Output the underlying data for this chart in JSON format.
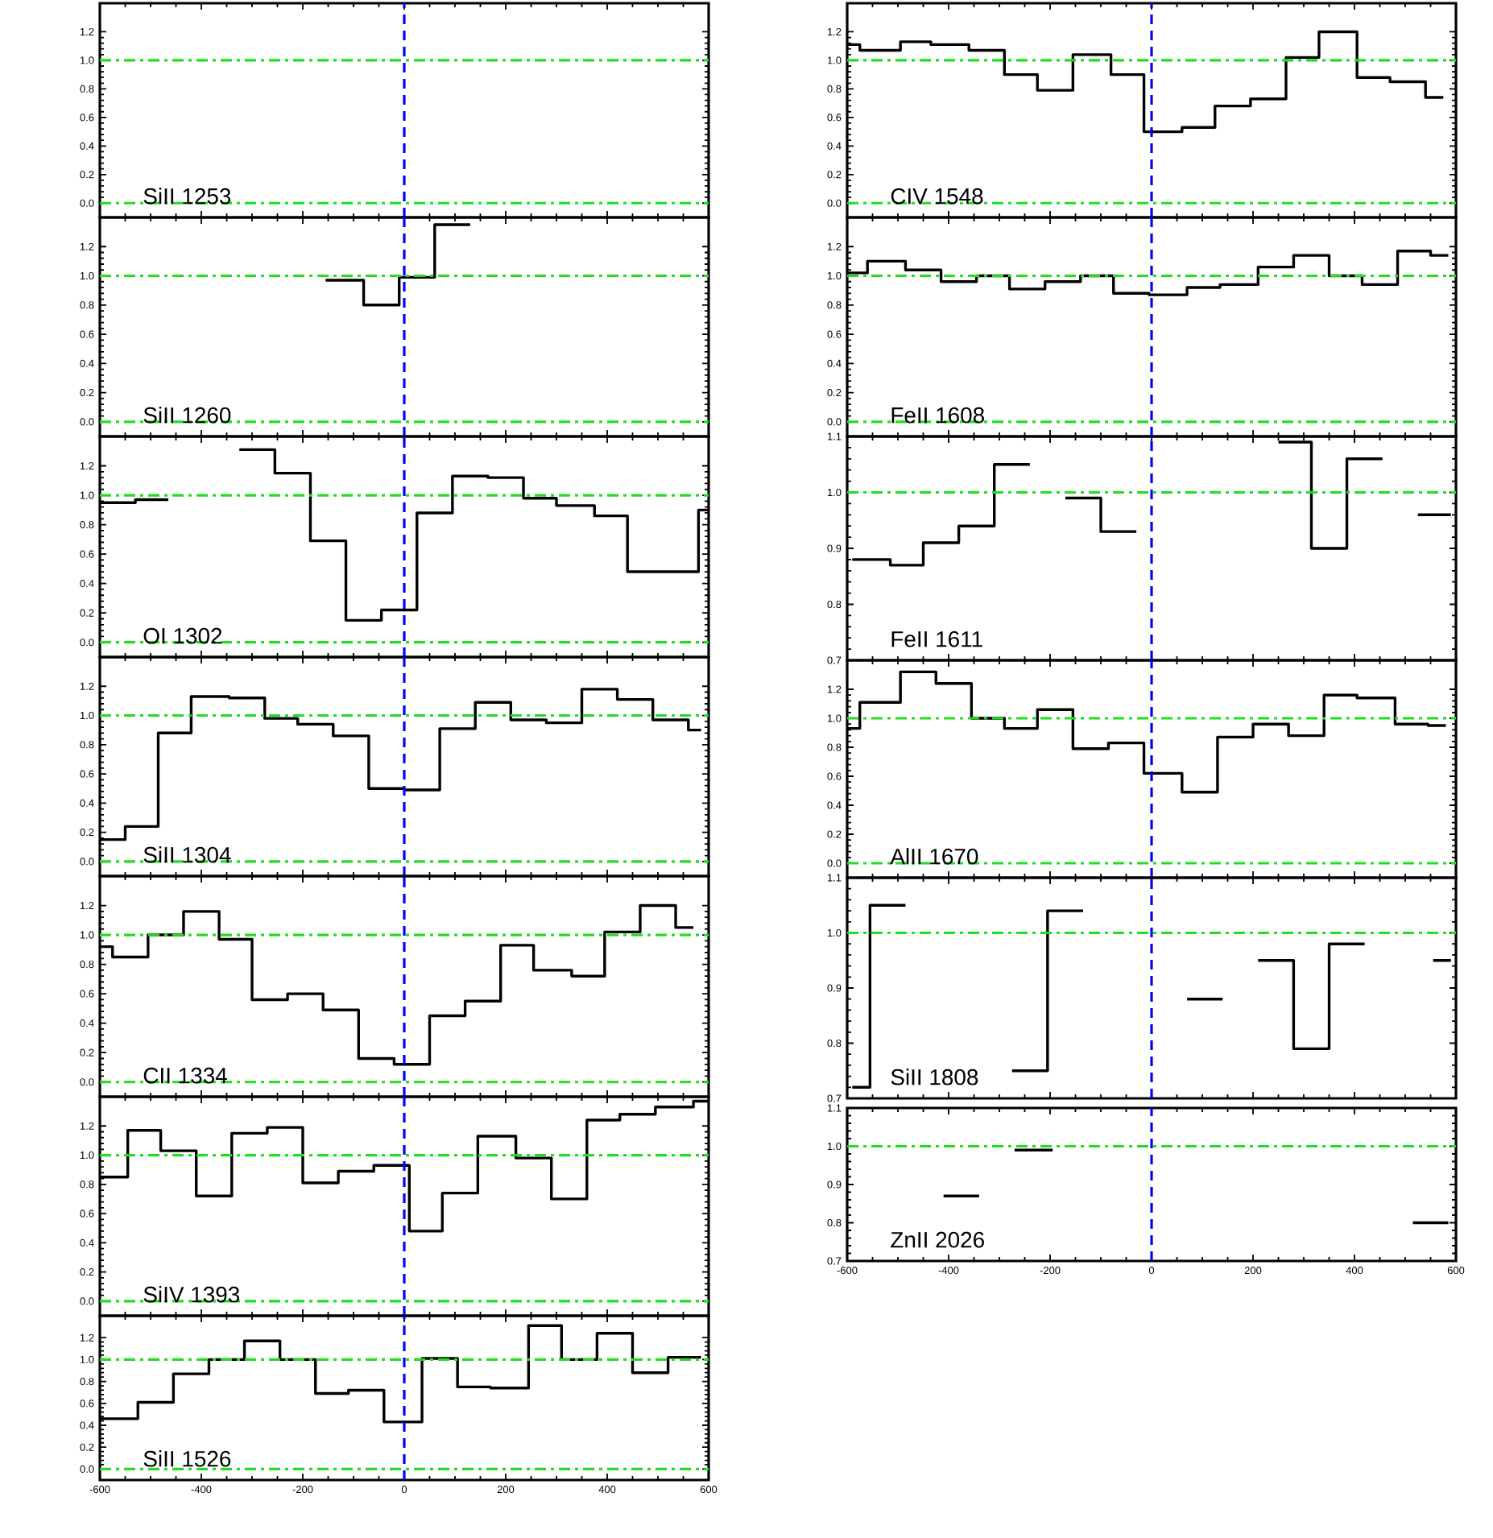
{
  "chart_data": [
    {
      "type": "step",
      "xlim": [
        -600,
        600
      ],
      "xticks": [
        -600,
        -400,
        -200,
        0,
        200,
        400,
        600
      ],
      "ylim": [
        -0.1,
        1.4
      ],
      "yticks": [
        {
          "value": 0,
          "label": "0.0"
        },
        {
          "value": 0.2,
          "label": "0.2"
        },
        {
          "value": 0.4,
          "label": "0.4"
        },
        {
          "value": 0.6,
          "label": "0.6"
        },
        {
          "value": 0.8,
          "label": "0.8"
        },
        {
          "value": 1.0,
          "label": "1.0"
        },
        {
          "value": 1.2,
          "label": "1.2"
        }
      ],
      "tick_labels": "y",
      "ref_lines": [
        {
          "axis": "x",
          "value": 0,
          "color": "#0000ff",
          "line_style": "dashed"
        },
        {
          "axis": "y",
          "value": 0,
          "color": "#22dd22",
          "line_style": "dashdot"
        },
        {
          "axis": "y",
          "value": 1,
          "color": "#22dd22",
          "line_style": "dashdot"
        }
      ],
      "annotations": [
        "SiII 1253"
      ]
    },
    {
      "type": "step",
      "color": "#000000",
      "xlim": [
        -600,
        600
      ],
      "xticks": [
        -600,
        -400,
        -200,
        0,
        200,
        400,
        600
      ],
      "ylim": [
        -0.1,
        1.4
      ],
      "yticks": [
        {
          "value": 0,
          "label": "0.0"
        },
        {
          "value": 0.2,
          "label": "0.2"
        },
        {
          "value": 0.4,
          "label": "0.4"
        },
        {
          "value": 0.6,
          "label": "0.6"
        },
        {
          "value": 0.8,
          "label": "0.8"
        },
        {
          "value": 1.0,
          "label": "1.0"
        },
        {
          "value": 1.2,
          "label": "1.2"
        }
      ],
      "tick_labels": "y",
      "x": [
        -155,
        -80,
        -10,
        60,
        130
      ],
      "values": [
        0.97,
        0.8,
        0.99,
        1.35,
        1.35
      ],
      "ref_lines": [
        {
          "axis": "x",
          "value": 0,
          "color": "#0000ff",
          "line_style": "dashed"
        },
        {
          "axis": "y",
          "value": 0,
          "color": "#22dd22",
          "line_style": "dashdot"
        },
        {
          "axis": "y",
          "value": 1,
          "color": "#22dd22",
          "line_style": "dashdot"
        }
      ],
      "annotations": [
        "SiII 1260"
      ]
    },
    {
      "type": "step",
      "color": "#000000",
      "xlim": [
        -600,
        600
      ],
      "xticks": [
        -600,
        -400,
        -200,
        0,
        200,
        400,
        600
      ],
      "ylim": [
        -0.1,
        1.4
      ],
      "yticks": [
        {
          "value": 0,
          "label": "0.0"
        },
        {
          "value": 0.2,
          "label": "0.2"
        },
        {
          "value": 0.4,
          "label": "0.4"
        },
        {
          "value": 0.6,
          "label": "0.6"
        },
        {
          "value": 0.8,
          "label": "0.8"
        },
        {
          "value": 1.0,
          "label": "1.0"
        },
        {
          "value": 1.2,
          "label": "1.2"
        }
      ],
      "tick_labels": "y",
      "x": [
        -600,
        -530,
        -465,
        -325,
        -255,
        -185,
        -115,
        -45,
        25,
        95,
        165,
        235,
        300,
        375,
        440,
        580,
        600
      ],
      "values": [
        0.95,
        0.97,
        null,
        1.31,
        1.15,
        0.69,
        0.15,
        0.22,
        0.88,
        1.13,
        1.12,
        0.98,
        0.93,
        0.86,
        0.48,
        0.9,
        0.9
      ],
      "ref_lines": [
        {
          "axis": "x",
          "value": 0,
          "color": "#0000ff",
          "line_style": "dashed"
        },
        {
          "axis": "y",
          "value": 0,
          "color": "#22dd22",
          "line_style": "dashdot"
        },
        {
          "axis": "y",
          "value": 1,
          "color": "#22dd22",
          "line_style": "dashdot"
        }
      ],
      "annotations": [
        "OI 1302"
      ]
    },
    {
      "type": "step",
      "color": "#000000",
      "xlim": [
        -600,
        600
      ],
      "xticks": [
        -600,
        -400,
        -200,
        0,
        200,
        400,
        600
      ],
      "ylim": [
        -0.1,
        1.4
      ],
      "yticks": [
        {
          "value": 0,
          "label": "0.0"
        },
        {
          "value": 0.2,
          "label": "0.2"
        },
        {
          "value": 0.4,
          "label": "0.4"
        },
        {
          "value": 0.6,
          "label": "0.6"
        },
        {
          "value": 0.8,
          "label": "0.8"
        },
        {
          "value": 1.0,
          "label": "1.0"
        },
        {
          "value": 1.2,
          "label": "1.2"
        }
      ],
      "tick_labels": "y",
      "x": [
        -600,
        -550,
        -485,
        -420,
        -345,
        -275,
        -210,
        -140,
        -70,
        0,
        70,
        140,
        210,
        280,
        350,
        420,
        490,
        560,
        585
      ],
      "values": [
        0.15,
        0.24,
        0.88,
        1.13,
        1.12,
        0.98,
        0.94,
        0.86,
        0.5,
        0.49,
        0.91,
        1.09,
        0.97,
        0.95,
        1.18,
        1.11,
        0.97,
        0.9,
        0.9
      ],
      "ref_lines": [
        {
          "axis": "x",
          "value": 0,
          "color": "#0000ff",
          "line_style": "dashed"
        },
        {
          "axis": "y",
          "value": 0,
          "color": "#22dd22",
          "line_style": "dashdot"
        },
        {
          "axis": "y",
          "value": 1,
          "color": "#22dd22",
          "line_style": "dashdot"
        }
      ],
      "annotations": [
        "SiII 1304"
      ]
    },
    {
      "type": "step",
      "color": "#000000",
      "xlim": [
        -600,
        600
      ],
      "xticks": [
        -600,
        -400,
        -200,
        0,
        200,
        400,
        600
      ],
      "ylim": [
        -0.1,
        1.4
      ],
      "yticks": [
        {
          "value": 0,
          "label": "0.0"
        },
        {
          "value": 0.2,
          "label": "0.2"
        },
        {
          "value": 0.4,
          "label": "0.4"
        },
        {
          "value": 0.6,
          "label": "0.6"
        },
        {
          "value": 0.8,
          "label": "0.8"
        },
        {
          "value": 1.0,
          "label": "1.0"
        },
        {
          "value": 1.2,
          "label": "1.2"
        }
      ],
      "tick_labels": "y",
      "x": [
        -600,
        -575,
        -505,
        -435,
        -365,
        -300,
        -230,
        -160,
        -90,
        -20,
        50,
        120,
        190,
        255,
        330,
        395,
        465,
        535,
        570
      ],
      "values": [
        0.92,
        0.85,
        1.0,
        1.16,
        0.97,
        0.56,
        0.6,
        0.49,
        0.16,
        0.12,
        0.45,
        0.55,
        0.93,
        0.76,
        0.72,
        1.02,
        1.2,
        1.05,
        1.05
      ],
      "ref_lines": [
        {
          "axis": "x",
          "value": 0,
          "color": "#0000ff",
          "line_style": "dashed"
        },
        {
          "axis": "y",
          "value": 0,
          "color": "#22dd22",
          "line_style": "dashdot"
        },
        {
          "axis": "y",
          "value": 1,
          "color": "#22dd22",
          "line_style": "dashdot"
        }
      ],
      "annotations": [
        "CII 1334"
      ]
    },
    {
      "type": "step",
      "color": "#000000",
      "xlim": [
        -600,
        600
      ],
      "xticks": [
        -600,
        -400,
        -200,
        0,
        200,
        400,
        600
      ],
      "ylim": [
        -0.1,
        1.4
      ],
      "yticks": [
        {
          "value": 0,
          "label": "0.0"
        },
        {
          "value": 0.2,
          "label": "0.2"
        },
        {
          "value": 0.4,
          "label": "0.4"
        },
        {
          "value": 0.6,
          "label": "0.6"
        },
        {
          "value": 0.8,
          "label": "0.8"
        },
        {
          "value": 1.0,
          "label": "1.0"
        },
        {
          "value": 1.2,
          "label": "1.2"
        }
      ],
      "tick_labels": "y",
      "x": [
        -600,
        -545,
        -480,
        -410,
        -340,
        -270,
        -200,
        -130,
        -60,
        10,
        75,
        145,
        220,
        290,
        360,
        425,
        495,
        570,
        600
      ],
      "values": [
        0.85,
        1.17,
        1.03,
        0.72,
        1.15,
        1.19,
        0.81,
        0.89,
        0.93,
        0.48,
        0.74,
        1.13,
        0.98,
        0.7,
        1.24,
        1.28,
        1.33,
        1.37,
        1.37
      ],
      "ref_lines": [
        {
          "axis": "x",
          "value": 0,
          "color": "#0000ff",
          "line_style": "dashed"
        },
        {
          "axis": "y",
          "value": 0,
          "color": "#22dd22",
          "line_style": "dashdot"
        },
        {
          "axis": "y",
          "value": 1,
          "color": "#22dd22",
          "line_style": "dashdot"
        }
      ],
      "annotations": [
        "SiIV 1393"
      ]
    },
    {
      "type": "step",
      "color": "#000000",
      "xlim": [
        -600,
        600
      ],
      "xticks": [
        -600,
        -400,
        -200,
        0,
        200,
        400,
        600
      ],
      "ylim": [
        -0.1,
        1.4
      ],
      "yticks": [
        {
          "value": 0,
          "label": "0.0"
        },
        {
          "value": 0.2,
          "label": "0.2"
        },
        {
          "value": 0.4,
          "label": "0.4"
        },
        {
          "value": 0.6,
          "label": "0.6"
        },
        {
          "value": 0.8,
          "label": "0.8"
        },
        {
          "value": 1.0,
          "label": "1.0"
        },
        {
          "value": 1.2,
          "label": "1.2"
        }
      ],
      "x": [
        -600,
        -525,
        -455,
        -385,
        -315,
        -245,
        -175,
        -110,
        -40,
        35,
        105,
        170,
        245,
        310,
        380,
        450,
        520,
        585
      ],
      "values": [
        0.46,
        0.61,
        0.87,
        1.0,
        1.17,
        1.0,
        0.69,
        0.72,
        0.43,
        1.01,
        0.75,
        0.74,
        1.31,
        1.0,
        1.24,
        0.88,
        1.02,
        1.02
      ],
      "ref_lines": [
        {
          "axis": "x",
          "value": 0,
          "color": "#0000ff",
          "line_style": "dashed"
        },
        {
          "axis": "y",
          "value": 0,
          "color": "#22dd22",
          "line_style": "dashdot"
        },
        {
          "axis": "y",
          "value": 1,
          "color": "#22dd22",
          "line_style": "dashdot"
        }
      ],
      "annotations": [
        "SiII 1526"
      ]
    },
    {
      "type": "step",
      "color": "#000000",
      "xlim": [
        -600,
        600
      ],
      "xticks": [
        -600,
        -400,
        -200,
        0,
        200,
        400,
        600
      ],
      "ylim": [
        -0.1,
        1.4
      ],
      "yticks": [
        {
          "value": 0,
          "label": "0.0"
        },
        {
          "value": 0.2,
          "label": "0.2"
        },
        {
          "value": 0.4,
          "label": "0.4"
        },
        {
          "value": 0.6,
          "label": "0.6"
        },
        {
          "value": 0.8,
          "label": "0.8"
        },
        {
          "value": 1.0,
          "label": "1.0"
        },
        {
          "value": 1.2,
          "label": "1.2"
        }
      ],
      "tick_labels": "y",
      "x": [
        -600,
        -575,
        -495,
        -435,
        -360,
        -290,
        -225,
        -155,
        -80,
        -15,
        60,
        125,
        195,
        265,
        330,
        405,
        470,
        540,
        575
      ],
      "values": [
        1.11,
        1.07,
        1.13,
        1.11,
        1.07,
        0.9,
        0.79,
        1.04,
        0.9,
        0.5,
        0.53,
        0.68,
        0.73,
        1.02,
        1.2,
        0.88,
        0.85,
        0.74,
        0.74
      ],
      "ref_lines": [
        {
          "axis": "x",
          "value": 0,
          "color": "#0000ff",
          "line_style": "dashed"
        },
        {
          "axis": "y",
          "value": 0,
          "color": "#22dd22",
          "line_style": "dashdot"
        },
        {
          "axis": "y",
          "value": 1,
          "color": "#22dd22",
          "line_style": "dashdot"
        }
      ],
      "annotations": [
        "CIV 1548"
      ]
    },
    {
      "type": "step",
      "color": "#000000",
      "xlim": [
        -600,
        600
      ],
      "xticks": [
        -600,
        -400,
        -200,
        0,
        200,
        400,
        600
      ],
      "ylim": [
        -0.1,
        1.4
      ],
      "yticks": [
        {
          "value": 0,
          "label": "0.0"
        },
        {
          "value": 0.2,
          "label": "0.2"
        },
        {
          "value": 0.4,
          "label": "0.4"
        },
        {
          "value": 0.6,
          "label": "0.6"
        },
        {
          "value": 0.8,
          "label": "0.8"
        },
        {
          "value": 1.0,
          "label": "1.0"
        },
        {
          "value": 1.2,
          "label": "1.2"
        }
      ],
      "tick_labels": "y",
      "x": [
        -600,
        -560,
        -485,
        -415,
        -345,
        -280,
        -210,
        -140,
        -75,
        -5,
        70,
        135,
        210,
        280,
        350,
        415,
        485,
        550,
        585
      ],
      "values": [
        1.02,
        1.1,
        1.04,
        0.96,
        1.0,
        0.91,
        0.96,
        1.0,
        0.88,
        0.87,
        0.92,
        0.94,
        1.06,
        1.14,
        1.0,
        0.94,
        1.17,
        1.14,
        1.14
      ],
      "ref_lines": [
        {
          "axis": "x",
          "value": 0,
          "color": "#0000ff",
          "line_style": "dashed"
        },
        {
          "axis": "y",
          "value": 0,
          "color": "#22dd22",
          "line_style": "dashdot"
        },
        {
          "axis": "y",
          "value": 1,
          "color": "#22dd22",
          "line_style": "dashdot"
        }
      ],
      "annotations": [
        "FeII 1608"
      ]
    },
    {
      "type": "step",
      "color": "#000000",
      "xlim": [
        -600,
        600
      ],
      "xticks": [
        -600,
        -400,
        -200,
        0,
        200,
        400,
        600
      ],
      "ylim": [
        0.7,
        1.1
      ],
      "yticks": [
        {
          "value": 0.7,
          "label": "0.7"
        },
        {
          "value": 0.8,
          "label": "0.8"
        },
        {
          "value": 0.9,
          "label": "0.9"
        },
        {
          "value": 1.0,
          "label": "1.0"
        },
        {
          "value": 1.1,
          "label": "1.1"
        }
      ],
      "tick_labels": "y",
      "x": [
        -590,
        -515,
        -450,
        -380,
        -310,
        -240,
        -170,
        -100,
        -30,
        250,
        315,
        385,
        455,
        525,
        590
      ],
      "values": [
        0.88,
        0.87,
        0.91,
        0.94,
        1.05,
        null,
        0.99,
        0.93,
        null,
        1.09,
        0.9,
        1.06,
        null,
        0.96,
        0.96
      ],
      "ref_lines": [
        {
          "axis": "x",
          "value": 0,
          "color": "#0000ff",
          "line_style": "dashed"
        },
        {
          "axis": "y",
          "value": 1,
          "color": "#22dd22",
          "line_style": "dashdot"
        }
      ],
      "annotations": [
        "FeII 1611"
      ]
    },
    {
      "type": "step",
      "color": "#000000",
      "xlim": [
        -600,
        600
      ],
      "xticks": [
        -600,
        -400,
        -200,
        0,
        200,
        400,
        600
      ],
      "ylim": [
        -0.1,
        1.4
      ],
      "yticks": [
        {
          "value": 0,
          "label": "0.0"
        },
        {
          "value": 0.2,
          "label": "0.2"
        },
        {
          "value": 0.4,
          "label": "0.4"
        },
        {
          "value": 0.6,
          "label": "0.6"
        },
        {
          "value": 0.8,
          "label": "0.8"
        },
        {
          "value": 1.0,
          "label": "1.0"
        },
        {
          "value": 1.2,
          "label": "1.2"
        }
      ],
      "tick_labels": "y",
      "x": [
        -600,
        -575,
        -495,
        -425,
        -355,
        -290,
        -225,
        -155,
        -85,
        -15,
        60,
        130,
        200,
        270,
        340,
        405,
        480,
        545,
        580
      ],
      "values": [
        0.93,
        1.11,
        1.32,
        1.24,
        1.0,
        0.93,
        1.06,
        0.79,
        0.83,
        0.62,
        0.49,
        0.87,
        0.96,
        0.88,
        1.16,
        1.14,
        0.96,
        0.95,
        0.95
      ],
      "ref_lines": [
        {
          "axis": "x",
          "value": 0,
          "color": "#0000ff",
          "line_style": "dashed"
        },
        {
          "axis": "y",
          "value": 0,
          "color": "#22dd22",
          "line_style": "dashdot"
        },
        {
          "axis": "y",
          "value": 1,
          "color": "#22dd22",
          "line_style": "dashdot"
        }
      ],
      "annotations": [
        "AlII 1670"
      ]
    },
    {
      "type": "step",
      "color": "#000000",
      "xlim": [
        -600,
        600
      ],
      "xticks": [
        -600,
        -400,
        -200,
        0,
        200,
        400,
        600
      ],
      "ylim": [
        0.7,
        1.1
      ],
      "yticks": [
        {
          "value": 0.7,
          "label": "0.7"
        },
        {
          "value": 0.8,
          "label": "0.8"
        },
        {
          "value": 0.9,
          "label": "0.9"
        },
        {
          "value": 1.0,
          "label": "1.0"
        },
        {
          "value": 1.1,
          "label": "1.1"
        }
      ],
      "tick_labels": "y",
      "x": [
        -590,
        -555,
        -485,
        -275,
        -205,
        -135,
        70,
        140,
        210,
        280,
        350,
        420,
        555,
        590
      ],
      "values": [
        0.72,
        1.05,
        null,
        0.75,
        1.04,
        null,
        0.88,
        null,
        0.95,
        0.79,
        0.98,
        null,
        0.95,
        0.95
      ],
      "ref_lines": [
        {
          "axis": "x",
          "value": 0,
          "color": "#0000ff",
          "line_style": "dashed"
        },
        {
          "axis": "y",
          "value": 1,
          "color": "#22dd22",
          "line_style": "dashdot"
        }
      ],
      "annotations": [
        "SiII 1808"
      ]
    },
    {
      "type": "step",
      "color": "#000000",
      "xlim": [
        -600,
        600
      ],
      "xticks": [
        -600,
        -400,
        -200,
        0,
        200,
        400,
        600
      ],
      "ylim": [
        0.7,
        1.1
      ],
      "yticks": [
        {
          "value": 0.7,
          "label": "0.7"
        },
        {
          "value": 0.8,
          "label": "0.8"
        },
        {
          "value": 0.9,
          "label": "0.9"
        },
        {
          "value": 1.0,
          "label": "1.0"
        },
        {
          "value": 1.1,
          "label": "1.1"
        }
      ],
      "x": [
        -410,
        -340,
        -270,
        -195,
        515,
        585
      ],
      "values": [
        0.87,
        null,
        0.99,
        null,
        0.8,
        0.8
      ],
      "ref_lines": [
        {
          "axis": "x",
          "value": 0,
          "color": "#0000ff",
          "line_style": "dashed"
        },
        {
          "axis": "y",
          "value": 1,
          "color": "#22dd22",
          "line_style": "dashdot"
        }
      ],
      "annotations": [
        "ZnII 2026"
      ]
    }
  ]
}
